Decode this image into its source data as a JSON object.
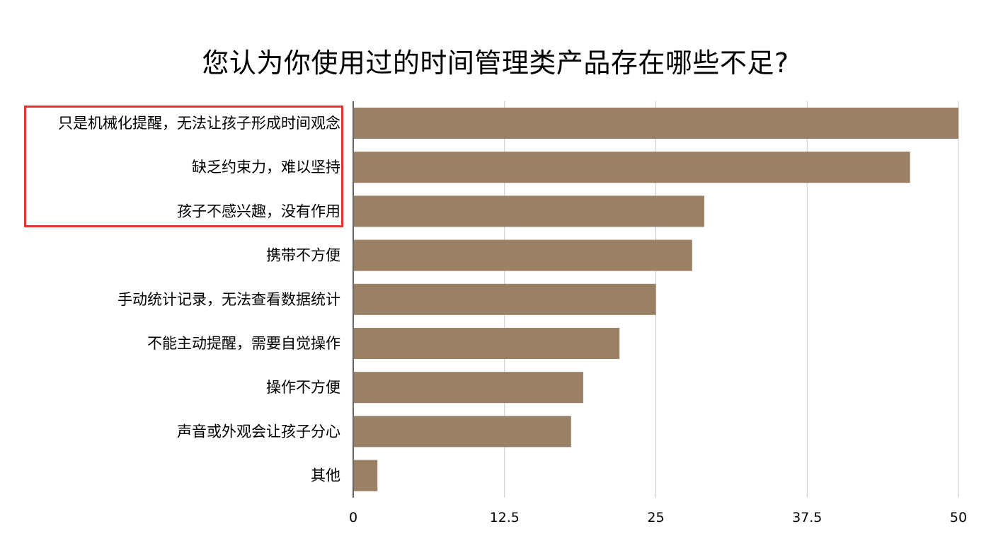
{
  "chart_data": {
    "type": "bar",
    "orientation": "horizontal",
    "title": "您认为你使用过的时间管理类产品存在哪些不足?",
    "categories": [
      "只是机械化提醒，无法让孩子形成时间观念",
      "缺乏约束力，难以坚持",
      "孩子不感兴趣，没有作用",
      "携带不方便",
      "手动统计记录，无法查看数据统计",
      "不能主动提醒，需要自觉操作",
      "操作不方便",
      "声音或外观会让孩子分心",
      "其他"
    ],
    "values": [
      50,
      46,
      29,
      28,
      25,
      22,
      19,
      18,
      2
    ],
    "xlim": [
      0,
      50
    ],
    "xticks": [
      "0",
      "12.5",
      "25",
      "37.5",
      "50"
    ],
    "xtick_values": [
      0,
      12.5,
      25,
      37.5,
      50
    ],
    "grid": true,
    "bar_color": "#9a8064",
    "grid_color": "#c8c8c8",
    "highlight_color": "#d93a2b",
    "highlighted_categories": [
      0,
      1,
      2
    ]
  }
}
